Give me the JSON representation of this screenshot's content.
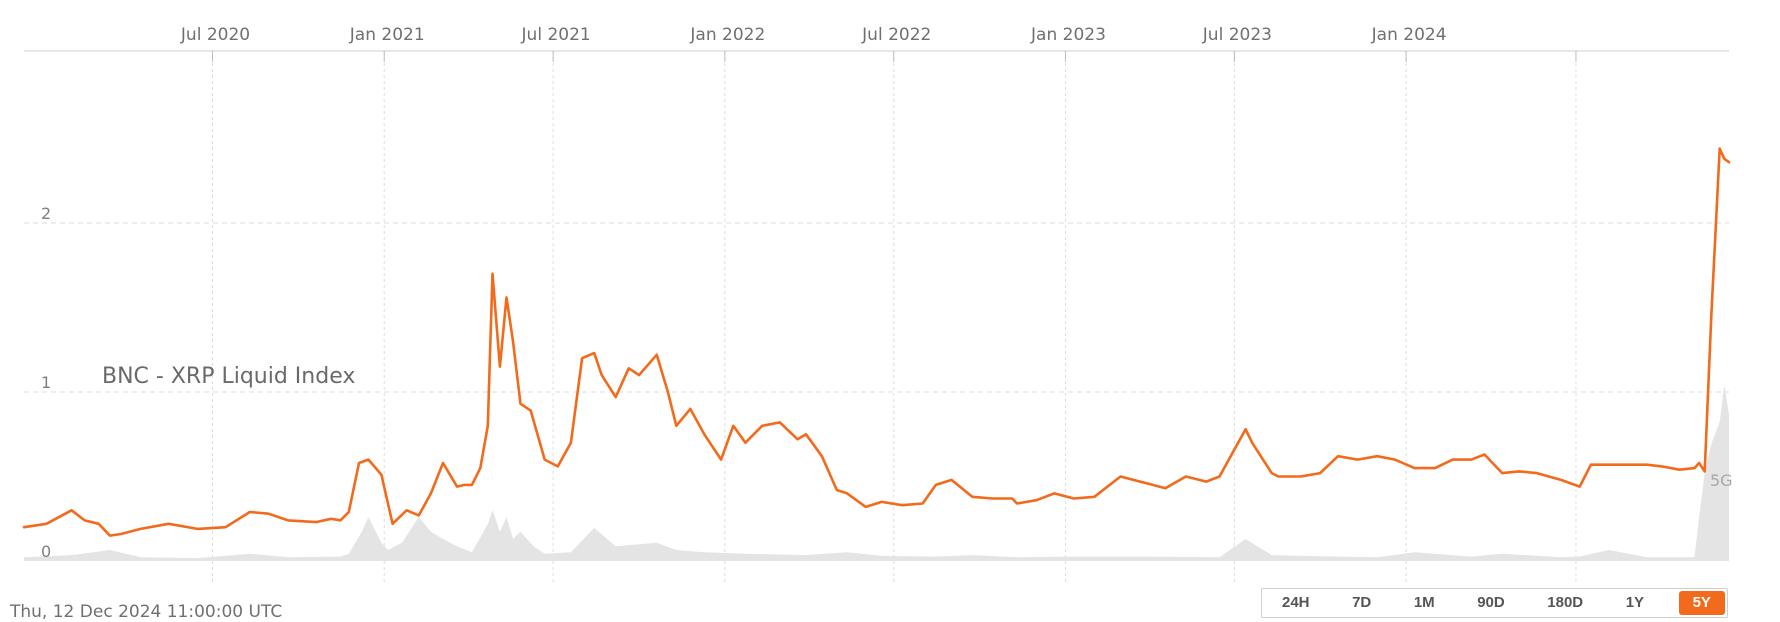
{
  "timestamp": "Thu, 12 Dec 2024 11:00:00 UTC",
  "range_buttons": [
    {
      "label": "24H",
      "active": false
    },
    {
      "label": "7D",
      "active": false
    },
    {
      "label": "1M",
      "active": false
    },
    {
      "label": "90D",
      "active": false
    },
    {
      "label": "180D",
      "active": false
    },
    {
      "label": "1Y",
      "active": false
    },
    {
      "label": "5Y",
      "active": true
    }
  ],
  "colors": {
    "price_line": "#f26a1b",
    "volume_fill": "#e4e4e4",
    "grid": "#dddddd",
    "active_button": "#f26a1b"
  },
  "chart_data": {
    "type": "line",
    "title": "BNC - XRP Liquid Index",
    "xlabel": "",
    "ylabel": "",
    "ylim": [
      0,
      2.7
    ],
    "xlim": [
      "2019-12-12",
      "2024-12-12"
    ],
    "x_ticks": [
      {
        "label": "Jul 2020",
        "date": "2020-07-01"
      },
      {
        "label": "Jan 2021",
        "date": "2021-01-01"
      },
      {
        "label": "Jul 2021",
        "date": "2021-07-01"
      },
      {
        "label": "Jan 2022",
        "date": "2022-01-01"
      },
      {
        "label": "Jul 2022",
        "date": "2022-07-01"
      },
      {
        "label": "Jan 2023",
        "date": "2023-01-01"
      },
      {
        "label": "Jul 2023",
        "date": "2023-07-01"
      },
      {
        "label": "Jan 2024",
        "date": "2024-01-01"
      },
      {
        "label": "",
        "date": "2024-07-01"
      }
    ],
    "y_ticks": [
      {
        "label": "0",
        "value": 0
      },
      {
        "label": "1",
        "value": 1
      },
      {
        "label": "2",
        "value": 2
      }
    ],
    "grid": true,
    "volume_axis_label": "5G",
    "series": [
      {
        "role": "price",
        "x": [
          "2019-12-12",
          "2020-01-05",
          "2020-02-01",
          "2020-02-15",
          "2020-03-01",
          "2020-03-13",
          "2020-03-25",
          "2020-04-15",
          "2020-05-15",
          "2020-06-15",
          "2020-07-15",
          "2020-08-10",
          "2020-08-30",
          "2020-09-20",
          "2020-10-20",
          "2020-11-05",
          "2020-11-15",
          "2020-11-24",
          "2020-12-05",
          "2020-12-15",
          "2020-12-23",
          "2020-12-29",
          "2021-01-10",
          "2021-01-25",
          "2021-02-07",
          "2021-02-20",
          "2021-03-05",
          "2021-03-20",
          "2021-03-28",
          "2021-04-05",
          "2021-04-14",
          "2021-04-22",
          "2021-04-27",
          "2021-05-05",
          "2021-05-12",
          "2021-05-19",
          "2021-05-27",
          "2021-06-07",
          "2021-06-22",
          "2021-07-06",
          "2021-07-20",
          "2021-08-01",
          "2021-08-14",
          "2021-08-22",
          "2021-09-06",
          "2021-09-20",
          "2021-10-01",
          "2021-10-20",
          "2021-11-01",
          "2021-11-10",
          "2021-11-25",
          "2021-12-10",
          "2021-12-28",
          "2022-01-10",
          "2022-01-23",
          "2022-02-10",
          "2022-03-01",
          "2022-03-20",
          "2022-03-29",
          "2022-04-15",
          "2022-05-01",
          "2022-05-12",
          "2022-06-01",
          "2022-06-18",
          "2022-07-10",
          "2022-08-01",
          "2022-08-15",
          "2022-09-01",
          "2022-09-23",
          "2022-10-15",
          "2022-11-05",
          "2022-11-10",
          "2022-12-01",
          "2022-12-20",
          "2023-01-10",
          "2023-02-01",
          "2023-03-01",
          "2023-03-29",
          "2023-04-18",
          "2023-05-10",
          "2023-06-01",
          "2023-06-15",
          "2023-07-13",
          "2023-07-20",
          "2023-08-10",
          "2023-08-17",
          "2023-09-10",
          "2023-10-01",
          "2023-10-20",
          "2023-11-10",
          "2023-12-01",
          "2023-12-20",
          "2024-01-10",
          "2024-02-01",
          "2024-02-20",
          "2024-03-11",
          "2024-03-25",
          "2024-04-13",
          "2024-05-01",
          "2024-05-20",
          "2024-06-15",
          "2024-07-05",
          "2024-07-17",
          "2024-08-05",
          "2024-08-25",
          "2024-09-15",
          "2024-10-01",
          "2024-10-20",
          "2024-11-05",
          "2024-11-10",
          "2024-11-16",
          "2024-11-23",
          "2024-12-02",
          "2024-12-07",
          "2024-12-12"
        ],
        "y": [
          0.2,
          0.22,
          0.3,
          0.24,
          0.22,
          0.15,
          0.16,
          0.19,
          0.22,
          0.19,
          0.2,
          0.29,
          0.28,
          0.24,
          0.23,
          0.25,
          0.24,
          0.29,
          0.58,
          0.6,
          0.55,
          0.51,
          0.22,
          0.3,
          0.27,
          0.4,
          0.58,
          0.44,
          0.45,
          0.45,
          0.55,
          0.8,
          1.7,
          1.15,
          1.56,
          1.3,
          0.93,
          0.89,
          0.6,
          0.56,
          0.7,
          1.2,
          1.23,
          1.1,
          0.97,
          1.14,
          1.1,
          1.22,
          1.0,
          0.8,
          0.9,
          0.75,
          0.6,
          0.8,
          0.7,
          0.8,
          0.82,
          0.72,
          0.75,
          0.62,
          0.42,
          0.4,
          0.32,
          0.35,
          0.33,
          0.34,
          0.45,
          0.48,
          0.38,
          0.37,
          0.37,
          0.34,
          0.36,
          0.4,
          0.37,
          0.38,
          0.5,
          0.46,
          0.43,
          0.5,
          0.47,
          0.5,
          0.78,
          0.7,
          0.52,
          0.5,
          0.5,
          0.52,
          0.62,
          0.6,
          0.62,
          0.6,
          0.55,
          0.55,
          0.6,
          0.6,
          0.63,
          0.52,
          0.53,
          0.52,
          0.48,
          0.44,
          0.57,
          0.57,
          0.57,
          0.57,
          0.56,
          0.54,
          0.55,
          0.58,
          0.53,
          1.45,
          2.44,
          2.38,
          2.36
        ]
      },
      {
        "role": "volume",
        "x": [
          "2019-12-12",
          "2020-02-01",
          "2020-03-13",
          "2020-04-15",
          "2020-06-15",
          "2020-08-10",
          "2020-09-20",
          "2020-11-15",
          "2020-11-24",
          "2020-12-08",
          "2020-12-15",
          "2020-12-23",
          "2020-12-29",
          "2021-01-05",
          "2021-01-20",
          "2021-02-07",
          "2021-02-20",
          "2021-03-05",
          "2021-03-20",
          "2021-04-05",
          "2021-04-22",
          "2021-04-27",
          "2021-05-05",
          "2021-05-12",
          "2021-05-19",
          "2021-05-27",
          "2021-06-10",
          "2021-06-22",
          "2021-07-20",
          "2021-08-14",
          "2021-09-06",
          "2021-10-20",
          "2021-11-10",
          "2021-12-10",
          "2022-01-23",
          "2022-03-29",
          "2022-05-12",
          "2022-06-18",
          "2022-08-15",
          "2022-09-23",
          "2022-11-10",
          "2023-01-10",
          "2023-03-29",
          "2023-06-15",
          "2023-07-13",
          "2023-08-10",
          "2023-10-20",
          "2023-12-01",
          "2024-01-10",
          "2024-03-11",
          "2024-04-13",
          "2024-06-15",
          "2024-07-05",
          "2024-08-05",
          "2024-09-15",
          "2024-11-05",
          "2024-11-10",
          "2024-11-16",
          "2024-11-23",
          "2024-12-02",
          "2024-12-07",
          "2024-12-12"
        ],
        "y": [
          0.05,
          0.08,
          0.15,
          0.05,
          0.04,
          0.1,
          0.05,
          0.06,
          0.1,
          0.4,
          0.6,
          0.4,
          0.25,
          0.15,
          0.25,
          0.6,
          0.4,
          0.3,
          0.2,
          0.12,
          0.5,
          0.7,
          0.4,
          0.6,
          0.3,
          0.4,
          0.2,
          0.1,
          0.12,
          0.45,
          0.2,
          0.25,
          0.15,
          0.12,
          0.1,
          0.08,
          0.12,
          0.07,
          0.06,
          0.08,
          0.05,
          0.06,
          0.06,
          0.05,
          0.3,
          0.08,
          0.06,
          0.05,
          0.12,
          0.06,
          0.1,
          0.05,
          0.06,
          0.15,
          0.05,
          0.05,
          0.6,
          1.2,
          1.6,
          1.9,
          2.4,
          2.0
        ]
      }
    ]
  }
}
